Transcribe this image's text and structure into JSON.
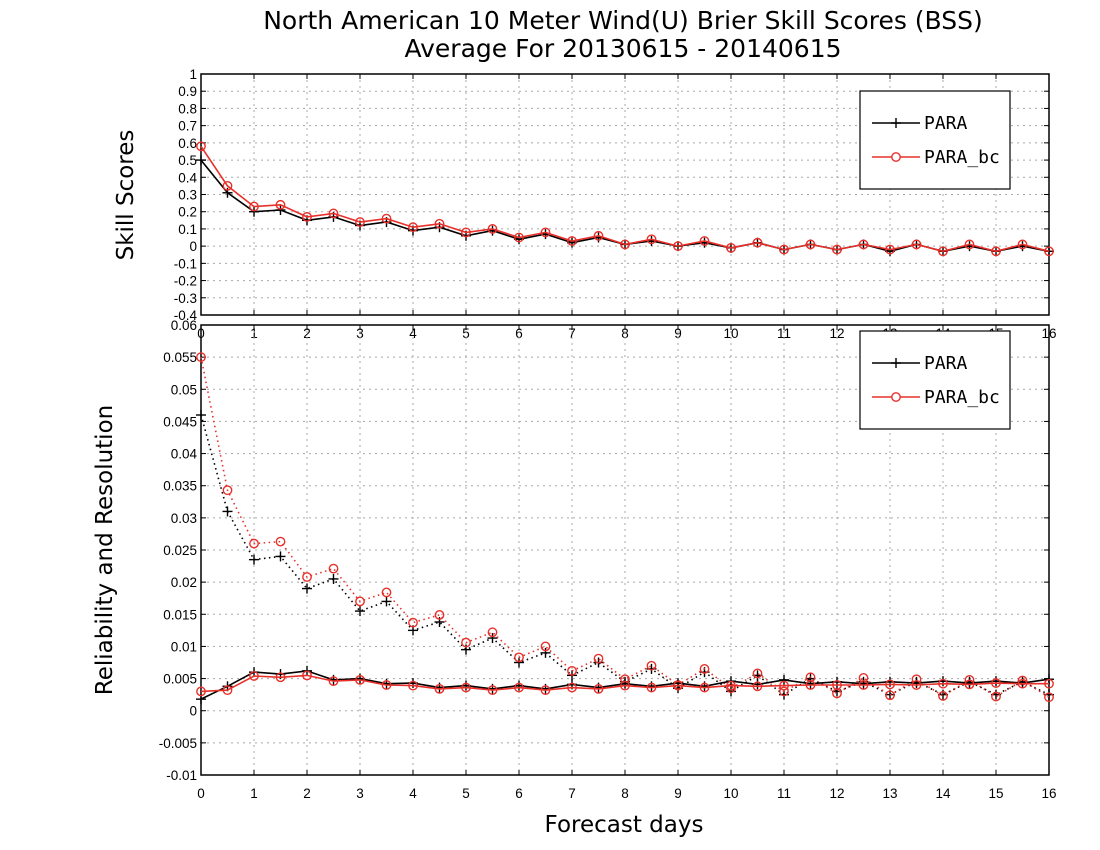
{
  "title_line1": "North American 10 Meter Wind(U) Brier Skill Scores (BSS)",
  "title_line2": "Average For 20130615 - 20140615",
  "xlabel": "Forecast days",
  "colors": {
    "PARA": "#000000",
    "PARA_bc": "#e8302a"
  },
  "chart_data": [
    {
      "type": "line",
      "ylabel": "Skill Scores",
      "xlim": [
        0,
        16
      ],
      "ylim": [
        -0.4,
        1
      ],
      "grid": true,
      "legend": "top-right",
      "x_ticks": [
        0,
        1,
        2,
        3,
        4,
        5,
        6,
        7,
        8,
        9,
        10,
        11,
        12,
        13,
        14,
        15,
        16
      ],
      "y_ticks": [
        "1",
        "0.9",
        "0.8",
        "0.7",
        "0.6",
        "0.5",
        "0.4",
        "0.3",
        "0.2",
        "0.1",
        "0",
        "-0.1",
        "-0.2",
        "-0.3",
        "-0.4"
      ],
      "x": [
        0,
        0.5,
        1,
        1.5,
        2,
        2.5,
        3,
        3.5,
        4,
        4.5,
        5,
        5.5,
        6,
        6.5,
        7,
        7.5,
        8,
        8.5,
        9,
        9.5,
        10,
        10.5,
        11,
        11.5,
        12,
        12.5,
        13,
        13.5,
        14,
        14.5,
        15,
        15.5,
        16
      ],
      "series": [
        {
          "name": "PARA",
          "marker": "plus",
          "style": "solid",
          "values": [
            0.5,
            0.31,
            0.2,
            0.21,
            0.15,
            0.17,
            0.12,
            0.14,
            0.09,
            0.11,
            0.06,
            0.09,
            0.04,
            0.07,
            0.02,
            0.05,
            0.01,
            0.03,
            0.0,
            0.02,
            -0.01,
            0.02,
            -0.02,
            0.01,
            -0.02,
            0.01,
            -0.03,
            0.01,
            -0.03,
            0.0,
            -0.03,
            0.0,
            -0.03
          ]
        },
        {
          "name": "PARA_bc",
          "marker": "circle",
          "style": "solid",
          "values": [
            0.58,
            0.35,
            0.23,
            0.24,
            0.17,
            0.19,
            0.14,
            0.16,
            0.11,
            0.13,
            0.08,
            0.1,
            0.05,
            0.08,
            0.03,
            0.06,
            0.01,
            0.04,
            0.0,
            0.03,
            -0.01,
            0.02,
            -0.02,
            0.01,
            -0.02,
            0.01,
            -0.02,
            0.01,
            -0.03,
            0.01,
            -0.03,
            0.01,
            -0.03
          ]
        }
      ]
    },
    {
      "type": "line",
      "ylabel": "Reliability and Resolution",
      "xlim": [
        0,
        16
      ],
      "ylim": [
        -0.01,
        0.06
      ],
      "grid": true,
      "legend": "top-right",
      "x_ticks": [
        0,
        1,
        2,
        3,
        4,
        5,
        6,
        7,
        8,
        9,
        10,
        11,
        12,
        13,
        14,
        15,
        16
      ],
      "y_ticks": [
        "0.06",
        "0.055",
        "0.05",
        "0.045",
        "0.04",
        "0.035",
        "0.03",
        "0.025",
        "0.02",
        "0.015",
        "0.01",
        "0.005",
        "0",
        "-0.005",
        "-0.01"
      ],
      "x": [
        0,
        0.5,
        1,
        1.5,
        2,
        2.5,
        3,
        3.5,
        4,
        4.5,
        5,
        5.5,
        6,
        6.5,
        7,
        7.5,
        8,
        8.5,
        9,
        9.5,
        10,
        10.5,
        11,
        11.5,
        12,
        12.5,
        13,
        13.5,
        14,
        14.5,
        15,
        15.5,
        16
      ],
      "series": [
        {
          "name": "PARA",
          "marker": "plus",
          "style": "dotted",
          "legend": false,
          "values": [
            0.046,
            0.031,
            0.0235,
            0.024,
            0.019,
            0.0205,
            0.0155,
            0.017,
            0.0125,
            0.0138,
            0.0095,
            0.0113,
            0.0075,
            0.009,
            0.0055,
            0.0075,
            0.0045,
            0.0065,
            0.0035,
            0.006,
            0.003,
            0.0055,
            0.0025,
            0.005,
            0.003,
            0.0045,
            0.0025,
            0.0045,
            0.0025,
            0.0045,
            0.0025,
            0.0045,
            0.0025
          ]
        },
        {
          "name": "PARA_bc",
          "marker": "circle",
          "style": "dotted",
          "legend": false,
          "values": [
            0.055,
            0.0343,
            0.026,
            0.0263,
            0.0208,
            0.0221,
            0.017,
            0.0184,
            0.0137,
            0.0149,
            0.0106,
            0.0122,
            0.0083,
            0.01,
            0.0062,
            0.0081,
            0.0049,
            0.007,
            0.004,
            0.0065,
            0.0035,
            0.0058,
            0.003,
            0.0052,
            0.0027,
            0.0051,
            0.0024,
            0.0049,
            0.0023,
            0.0048,
            0.0022,
            0.0047,
            0.0021
          ]
        },
        {
          "name": "PARA",
          "marker": "plus",
          "style": "solid",
          "values": [
            0.0018,
            0.0038,
            0.006,
            0.0057,
            0.0062,
            0.0048,
            0.005,
            0.0042,
            0.0043,
            0.0036,
            0.0039,
            0.0034,
            0.0039,
            0.0034,
            0.0041,
            0.0036,
            0.0042,
            0.0038,
            0.0043,
            0.0038,
            0.0046,
            0.0041,
            0.0048,
            0.0042,
            0.0045,
            0.0042,
            0.0045,
            0.0043,
            0.0046,
            0.0043,
            0.0046,
            0.0043,
            0.0049
          ]
        },
        {
          "name": "PARA_bc",
          "marker": "circle",
          "style": "solid",
          "values": [
            0.003,
            0.0032,
            0.0054,
            0.0052,
            0.0055,
            0.0046,
            0.0048,
            0.004,
            0.0039,
            0.0034,
            0.0036,
            0.0032,
            0.0036,
            0.0032,
            0.0036,
            0.0034,
            0.0039,
            0.0036,
            0.0039,
            0.0036,
            0.0039,
            0.0038,
            0.0039,
            0.004,
            0.004,
            0.004,
            0.0041,
            0.004,
            0.0042,
            0.0041,
            0.0043,
            0.0042,
            0.0042
          ]
        }
      ]
    }
  ]
}
